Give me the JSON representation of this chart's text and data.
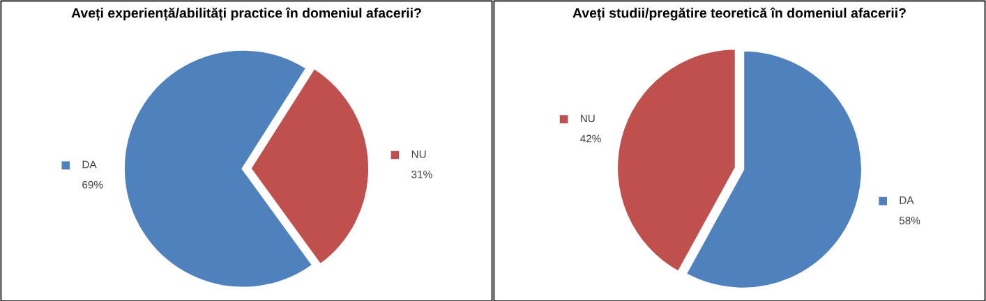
{
  "chart_data": [
    {
      "type": "pie",
      "title": "Aveți experiență/abilități practice în domeniul afacerii?",
      "categories": [
        "DA",
        "NU"
      ],
      "values": [
        69,
        31
      ],
      "value_labels": [
        "69%",
        "31%"
      ],
      "colors": [
        "#4f81bd",
        "#c0504d"
      ],
      "legend": "right"
    },
    {
      "type": "pie",
      "title": "Aveți studii/pregătire teoretică în domeniul afacerii?",
      "categories": [
        "DA",
        "NU"
      ],
      "values": [
        58,
        42
      ],
      "value_labels": [
        "58%",
        "42%"
      ],
      "colors": [
        "#4f81bd",
        "#c0504d"
      ],
      "legend": "right"
    }
  ]
}
